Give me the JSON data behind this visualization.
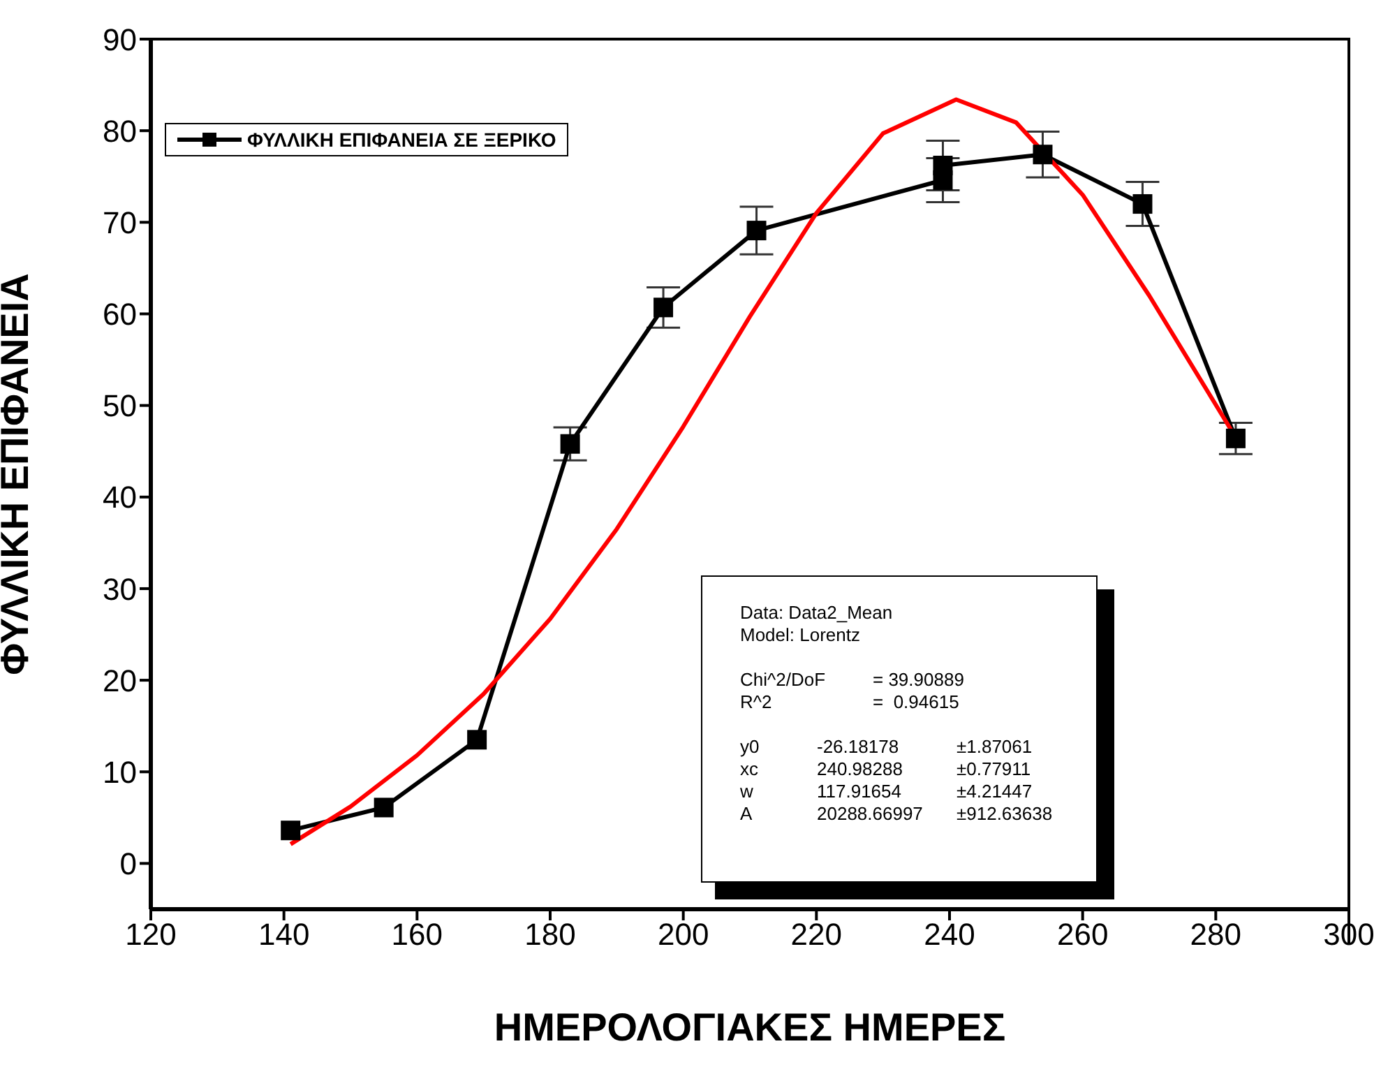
{
  "chart_data": {
    "type": "line",
    "xlabel": "ΗΜΕΡΟΛΟΓΙΑΚΕΣ ΗΜΕΡΕΣ",
    "ylabel": "ΦΥΛΛΙΚΗ ΕΠΙΦΑΝΕΙΑ",
    "xlim": [
      120,
      300
    ],
    "xticks": [
      120,
      140,
      160,
      180,
      200,
      220,
      240,
      260,
      280,
      300
    ],
    "ylim": [
      -5,
      90
    ],
    "yticks": [
      0,
      10,
      20,
      30,
      40,
      50,
      60,
      70,
      80,
      90
    ],
    "grid": false,
    "legend": "top left",
    "marker": "square",
    "line_style": "solid",
    "series": [
      {
        "name": "ΦΥΛΛΙΚΗ ΕΠΙΦΑΝΕΙΑ ΣΕ ΞΕΡΙΚΟ",
        "color": "#000000",
        "x": [
          141,
          155,
          169,
          183,
          197,
          211,
          239,
          239,
          254,
          269,
          283
        ],
        "values": [
          3.6,
          6.1,
          13.5,
          45.8,
          60.7,
          69.1,
          74.6,
          76.2,
          77.4,
          72.0,
          46.4
        ],
        "errors": [
          null,
          null,
          null,
          1.8,
          2.2,
          2.6,
          2.4,
          2.7,
          2.5,
          2.4,
          1.7
        ]
      },
      {
        "type": "line",
        "color": "#ff0000",
        "marker": "none",
        "x": [
          141,
          150,
          160,
          170,
          180,
          190,
          200,
          210,
          220,
          230,
          241,
          250,
          260,
          270,
          283
        ],
        "values": [
          2.1,
          6.2,
          11.8,
          18.5,
          26.7,
          36.5,
          47.7,
          59.7,
          71.0,
          79.7,
          83.4,
          80.9,
          73.0,
          62.0,
          46.5
        ]
      }
    ],
    "annotations": [
      "Data: Data2_Mean",
      "Model: Lorentz",
      "Chi^2/DoF\t= 39.90889",
      "R^2\t=  0.94615",
      "y0\t-26.18178\t±1.87061",
      "xc\t240.98288\t±0.77911",
      "w\t117.91654\t±4.21447",
      "A\t20288.66997\t±912.63638"
    ]
  }
}
